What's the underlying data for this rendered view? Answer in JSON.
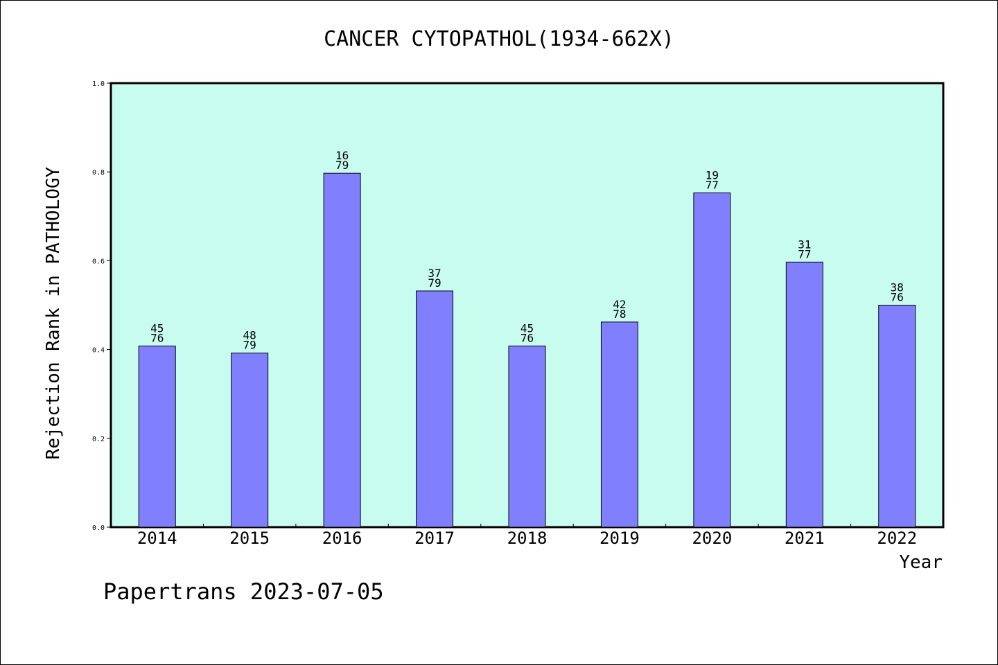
{
  "chart_data": {
    "type": "bar",
    "title": "CANCER CYTOPATHOL(1934-662X)",
    "xlabel": "Year",
    "ylabel": "Rejection Rank in PATHOLOGY",
    "ylim": [
      0,
      1.0
    ],
    "yticks": [
      "0.0",
      "0.2",
      "0.4",
      "0.6",
      "0.8",
      "1.0"
    ],
    "categories": [
      "2014",
      "2015",
      "2016",
      "2017",
      "2018",
      "2019",
      "2020",
      "2021",
      "2022"
    ],
    "values": [
      0.408,
      0.392,
      0.797,
      0.532,
      0.408,
      0.462,
      0.753,
      0.597,
      0.5
    ],
    "bar_labels": [
      [
        "45",
        "76"
      ],
      [
        "48",
        "79"
      ],
      [
        "16",
        "79"
      ],
      [
        "37",
        "79"
      ],
      [
        "45",
        "76"
      ],
      [
        "42",
        "78"
      ],
      [
        "19",
        "77"
      ],
      [
        "31",
        "77"
      ],
      [
        "38",
        "76"
      ]
    ],
    "grid": false,
    "colors": {
      "bar": "#8080ff",
      "plot_bg": "#c8fcee"
    }
  },
  "footer": {
    "text": "Papertrans 2023-07-05"
  }
}
